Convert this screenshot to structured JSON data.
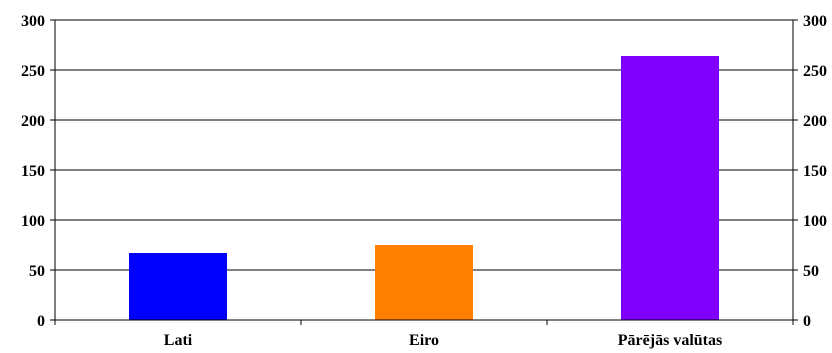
{
  "chart_data": {
    "type": "bar",
    "categories": [
      "Lati",
      "Eiro",
      "Pārējās valūtas"
    ],
    "values": [
      67,
      75,
      264
    ],
    "colors": [
      "#0000FF",
      "#FF7F00",
      "#7F00FF"
    ],
    "ylim": [
      0,
      300
    ],
    "yticks": [
      0,
      50,
      100,
      150,
      200,
      250,
      300
    ],
    "ytick_labels": [
      "0",
      "50",
      "100",
      "150",
      "200",
      "250",
      "300"
    ],
    "grid": true,
    "secondary_y_axis": true,
    "title": "",
    "xlabel": "",
    "ylabel": ""
  }
}
